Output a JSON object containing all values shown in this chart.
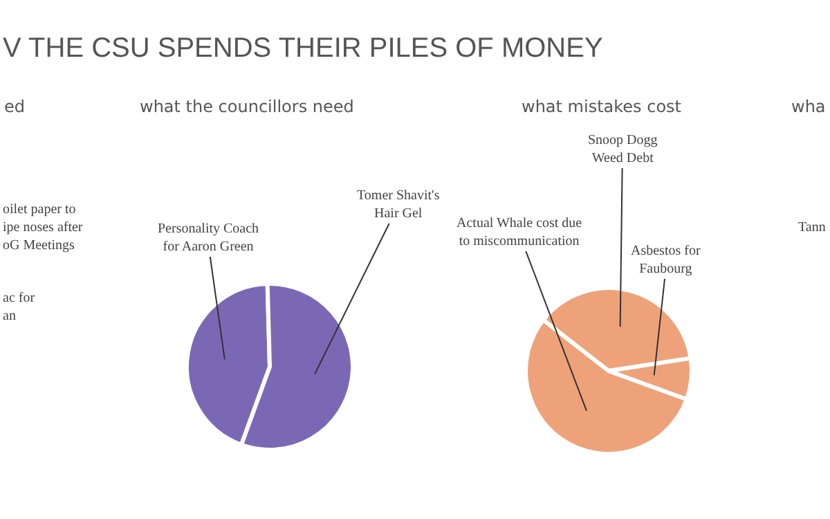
{
  "chart_data": [
    {
      "type": "other",
      "title": "V THE CSU SPENDS THEIR PILES OF MONEY",
      "subtitle": "ed",
      "annotations": [
        "oilet paper to\nipe noses after\noG Meetings",
        "ac for\nan"
      ]
    },
    {
      "type": "pie",
      "title": "what the councillors need",
      "categories": [
        "Personality Coach\nfor Aaron Green",
        "Tomer Shavit's\nHair Gel"
      ],
      "values": [
        44,
        56
      ],
      "colors": [
        "#7b68b5",
        "#7b68b5"
      ]
    },
    {
      "type": "pie",
      "title": "what mistakes cost",
      "categories": [
        "Actual Whale cost due\nto miscommunication",
        "Snoop Dogg\nWeed Debt",
        "Asbestos for\nFaubourg"
      ],
      "values": [
        55,
        37,
        8
      ],
      "colors": [
        "#eea27a",
        "#eea27a",
        "#eea27a"
      ]
    },
    {
      "type": "other",
      "subtitle": "wha",
      "annotations": [
        "Tann"
      ]
    }
  ]
}
